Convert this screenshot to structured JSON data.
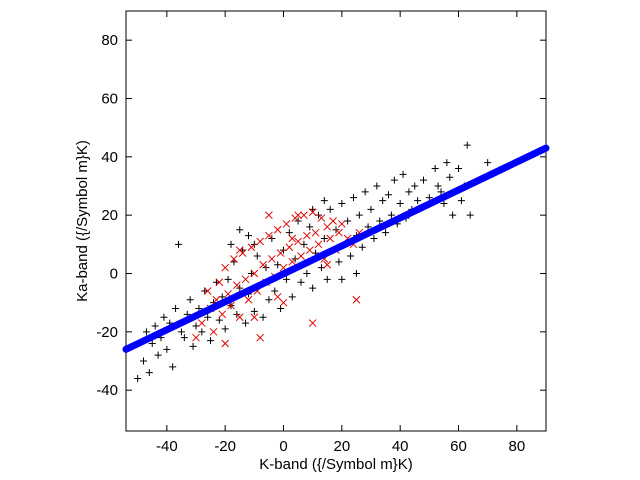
{
  "chart_data": {
    "type": "scatter",
    "title": "",
    "xlabel": "K-band ({/Symbol m}K)",
    "ylabel": "Ka-band ({/Symbol m}K)",
    "xlim": [
      -54,
      90
    ],
    "ylim": [
      -54,
      90
    ],
    "xticks": [
      -40,
      -20,
      0,
      20,
      40,
      60,
      80
    ],
    "yticks": [
      -40,
      -20,
      0,
      20,
      40,
      60,
      80
    ],
    "grid": false,
    "legend": "none",
    "colors": {
      "black_points": "#000000",
      "red_points": "#e00000",
      "fit_line": "#0000ff",
      "frame": "#000000"
    },
    "series": [
      {
        "marker": "plus",
        "color": "#000000",
        "points": [
          [
            -50,
            -36
          ],
          [
            -48,
            -30
          ],
          [
            -47,
            -20
          ],
          [
            -45,
            -24
          ],
          [
            -44,
            -18
          ],
          [
            -43,
            -28
          ],
          [
            -42,
            -22
          ],
          [
            -41,
            -15
          ],
          [
            -40,
            -26
          ],
          [
            -39,
            -17
          ],
          [
            -38,
            -32
          ],
          [
            -37,
            -12
          ],
          [
            -36,
            10
          ],
          [
            -35,
            -20
          ],
          [
            -34,
            -22
          ],
          [
            -33,
            -14
          ],
          [
            -32,
            -9
          ],
          [
            -31,
            -25
          ],
          [
            -30,
            -18
          ],
          [
            -29,
            -12
          ],
          [
            -28,
            -20
          ],
          [
            -27,
            -6
          ],
          [
            -26,
            -15
          ],
          [
            -25,
            -23
          ],
          [
            -24,
            -10
          ],
          [
            -23,
            -3
          ],
          [
            -22,
            -16
          ],
          [
            -21,
            -8
          ],
          [
            -20,
            -19
          ],
          [
            -19,
            -2
          ],
          [
            -18,
            -11
          ],
          [
            -17,
            4
          ],
          [
            -16,
            -14
          ],
          [
            -15,
            -5
          ],
          [
            -14,
            8
          ],
          [
            -13,
            -17
          ],
          [
            -12,
            -7
          ],
          [
            -11,
            0
          ],
          [
            -10,
            -13
          ],
          [
            -9,
            6
          ],
          [
            -8,
            -4
          ],
          [
            -7,
            -15
          ],
          [
            -6,
            2
          ],
          [
            -5,
            -9
          ],
          [
            -4,
            12
          ],
          [
            -3,
            -6
          ],
          [
            -2,
            3
          ],
          [
            -1,
            -12
          ],
          [
            0,
            8
          ],
          [
            1,
            -2
          ],
          [
            2,
            14
          ],
          [
            3,
            -8
          ],
          [
            4,
            5
          ],
          [
            5,
            18
          ],
          [
            6,
            -3
          ],
          [
            7,
            10
          ],
          [
            8,
            0
          ],
          [
            9,
            16
          ],
          [
            10,
            -5
          ],
          [
            11,
            7
          ],
          [
            12,
            20
          ],
          [
            13,
            2
          ],
          [
            14,
            12
          ],
          [
            15,
            -2
          ],
          [
            16,
            22
          ],
          [
            17,
            8
          ],
          [
            18,
            15
          ],
          [
            19,
            4
          ],
          [
            20,
            24
          ],
          [
            21,
            10
          ],
          [
            22,
            18
          ],
          [
            23,
            6
          ],
          [
            24,
            26
          ],
          [
            25,
            13
          ],
          [
            26,
            20
          ],
          [
            27,
            9
          ],
          [
            28,
            28
          ],
          [
            29,
            16
          ],
          [
            30,
            22
          ],
          [
            31,
            12
          ],
          [
            32,
            30
          ],
          [
            33,
            18
          ],
          [
            34,
            25
          ],
          [
            35,
            14
          ],
          [
            36,
            27
          ],
          [
            37,
            20
          ],
          [
            38,
            32
          ],
          [
            39,
            17
          ],
          [
            40,
            24
          ],
          [
            41,
            34
          ],
          [
            42,
            19
          ],
          [
            43,
            28
          ],
          [
            44,
            22
          ],
          [
            45,
            30
          ],
          [
            46,
            25
          ],
          [
            48,
            32
          ],
          [
            50,
            26
          ],
          [
            52,
            36
          ],
          [
            53,
            30
          ],
          [
            54,
            28
          ],
          [
            55,
            24
          ],
          [
            56,
            38
          ],
          [
            57,
            33
          ],
          [
            58,
            20
          ],
          [
            60,
            36
          ],
          [
            61,
            25
          ],
          [
            62,
            30
          ],
          [
            63,
            44
          ],
          [
            64,
            20
          ],
          [
            70,
            38
          ],
          [
            -52,
            -25
          ],
          [
            -46,
            -34
          ],
          [
            -18,
            10
          ],
          [
            -15,
            15
          ],
          [
            -12,
            13
          ],
          [
            10,
            22
          ],
          [
            14,
            25
          ],
          [
            -10,
            10
          ],
          [
            20,
            -2
          ],
          [
            25,
            0
          ]
        ]
      },
      {
        "marker": "cross",
        "color": "#e00000",
        "points": [
          [
            -30,
            -22
          ],
          [
            -28,
            -17
          ],
          [
            -26,
            -6
          ],
          [
            -25,
            -12
          ],
          [
            -24,
            -20
          ],
          [
            -23,
            -9
          ],
          [
            -22,
            -3
          ],
          [
            -21,
            -14
          ],
          [
            -20,
            2
          ],
          [
            -19,
            -7
          ],
          [
            -18,
            -11
          ],
          [
            -17,
            5
          ],
          [
            -16,
            -4
          ],
          [
            -15,
            -15
          ],
          [
            -14,
            7
          ],
          [
            -13,
            -2
          ],
          [
            -12,
            -9
          ],
          [
            -11,
            9
          ],
          [
            -10,
            0
          ],
          [
            -9,
            -6
          ],
          [
            -8,
            11
          ],
          [
            -7,
            3
          ],
          [
            -6,
            -3
          ],
          [
            -5,
            13
          ],
          [
            -4,
            5
          ],
          [
            -3,
            -1
          ],
          [
            -2,
            15
          ],
          [
            -1,
            7
          ],
          [
            0,
            2
          ],
          [
            1,
            17
          ],
          [
            2,
            9
          ],
          [
            3,
            4
          ],
          [
            4,
            19
          ],
          [
            5,
            11
          ],
          [
            6,
            6
          ],
          [
            7,
            20
          ],
          [
            8,
            13
          ],
          [
            9,
            8
          ],
          [
            10,
            21
          ],
          [
            11,
            14
          ],
          [
            12,
            10
          ],
          [
            13,
            19
          ],
          [
            14,
            5
          ],
          [
            15,
            16
          ],
          [
            16,
            12
          ],
          [
            17,
            18
          ],
          [
            18,
            8
          ],
          [
            19,
            14
          ],
          [
            20,
            17
          ],
          [
            22,
            12
          ],
          [
            24,
            10
          ],
          [
            25,
            -9
          ],
          [
            26,
            14
          ],
          [
            -20,
            -24
          ],
          [
            -8,
            -22
          ],
          [
            10,
            -17
          ],
          [
            0,
            -10
          ],
          [
            -5,
            20
          ],
          [
            5,
            20
          ],
          [
            -15,
            8
          ],
          [
            15,
            3
          ],
          [
            -2,
            -8
          ],
          [
            3,
            12
          ],
          [
            -10,
            -15
          ]
        ]
      },
      {
        "name": "",
        "type": "line",
        "color": "#0000ff",
        "points": [
          [
            -54,
            -26
          ],
          [
            90,
            43
          ]
        ]
      }
    ]
  }
}
